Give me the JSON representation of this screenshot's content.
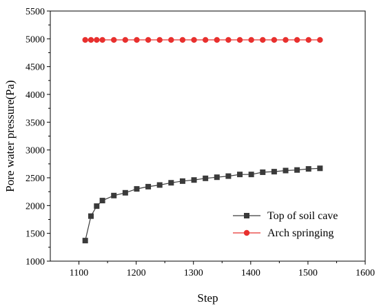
{
  "chart_data": {
    "type": "line",
    "xlabel": "Step",
    "ylabel": "Pore water pressure(Pa)",
    "xlim": [
      1050,
      1600
    ],
    "ylim": [
      1000,
      5500
    ],
    "x_ticks": [
      1100,
      1200,
      1300,
      1400,
      1500,
      1600
    ],
    "y_ticks": [
      1000,
      1500,
      2000,
      2500,
      3000,
      3500,
      4000,
      4500,
      5000,
      5500
    ],
    "grid": false,
    "legend_position": "lower-right",
    "series": [
      {
        "name": "Top of soil cave",
        "marker": "square",
        "color": "#3a3a3a",
        "points": [
          [
            1111,
            1370
          ],
          [
            1121,
            1810
          ],
          [
            1131,
            1990
          ],
          [
            1141,
            2090
          ],
          [
            1161,
            2180
          ],
          [
            1181,
            2230
          ],
          [
            1201,
            2300
          ],
          [
            1221,
            2340
          ],
          [
            1241,
            2370
          ],
          [
            1261,
            2410
          ],
          [
            1281,
            2440
          ],
          [
            1301,
            2460
          ],
          [
            1321,
            2490
          ],
          [
            1341,
            2510
          ],
          [
            1361,
            2530
          ],
          [
            1381,
            2560
          ],
          [
            1401,
            2560
          ],
          [
            1421,
            2600
          ],
          [
            1441,
            2610
          ],
          [
            1461,
            2630
          ],
          [
            1481,
            2640
          ],
          [
            1501,
            2660
          ],
          [
            1521,
            2670
          ]
        ]
      },
      {
        "name": "Arch springing",
        "marker": "circle",
        "color": "#e8302e",
        "points": [
          [
            1111,
            4980
          ],
          [
            1121,
            4980
          ],
          [
            1131,
            4980
          ],
          [
            1141,
            4980
          ],
          [
            1161,
            4980
          ],
          [
            1181,
            4980
          ],
          [
            1201,
            4980
          ],
          [
            1221,
            4980
          ],
          [
            1241,
            4980
          ],
          [
            1261,
            4980
          ],
          [
            1281,
            4980
          ],
          [
            1301,
            4980
          ],
          [
            1321,
            4980
          ],
          [
            1341,
            4980
          ],
          [
            1361,
            4980
          ],
          [
            1381,
            4980
          ],
          [
            1401,
            4980
          ],
          [
            1421,
            4980
          ],
          [
            1441,
            4980
          ],
          [
            1461,
            4980
          ],
          [
            1481,
            4980
          ],
          [
            1501,
            4980
          ],
          [
            1521,
            4980
          ]
        ]
      }
    ]
  }
}
